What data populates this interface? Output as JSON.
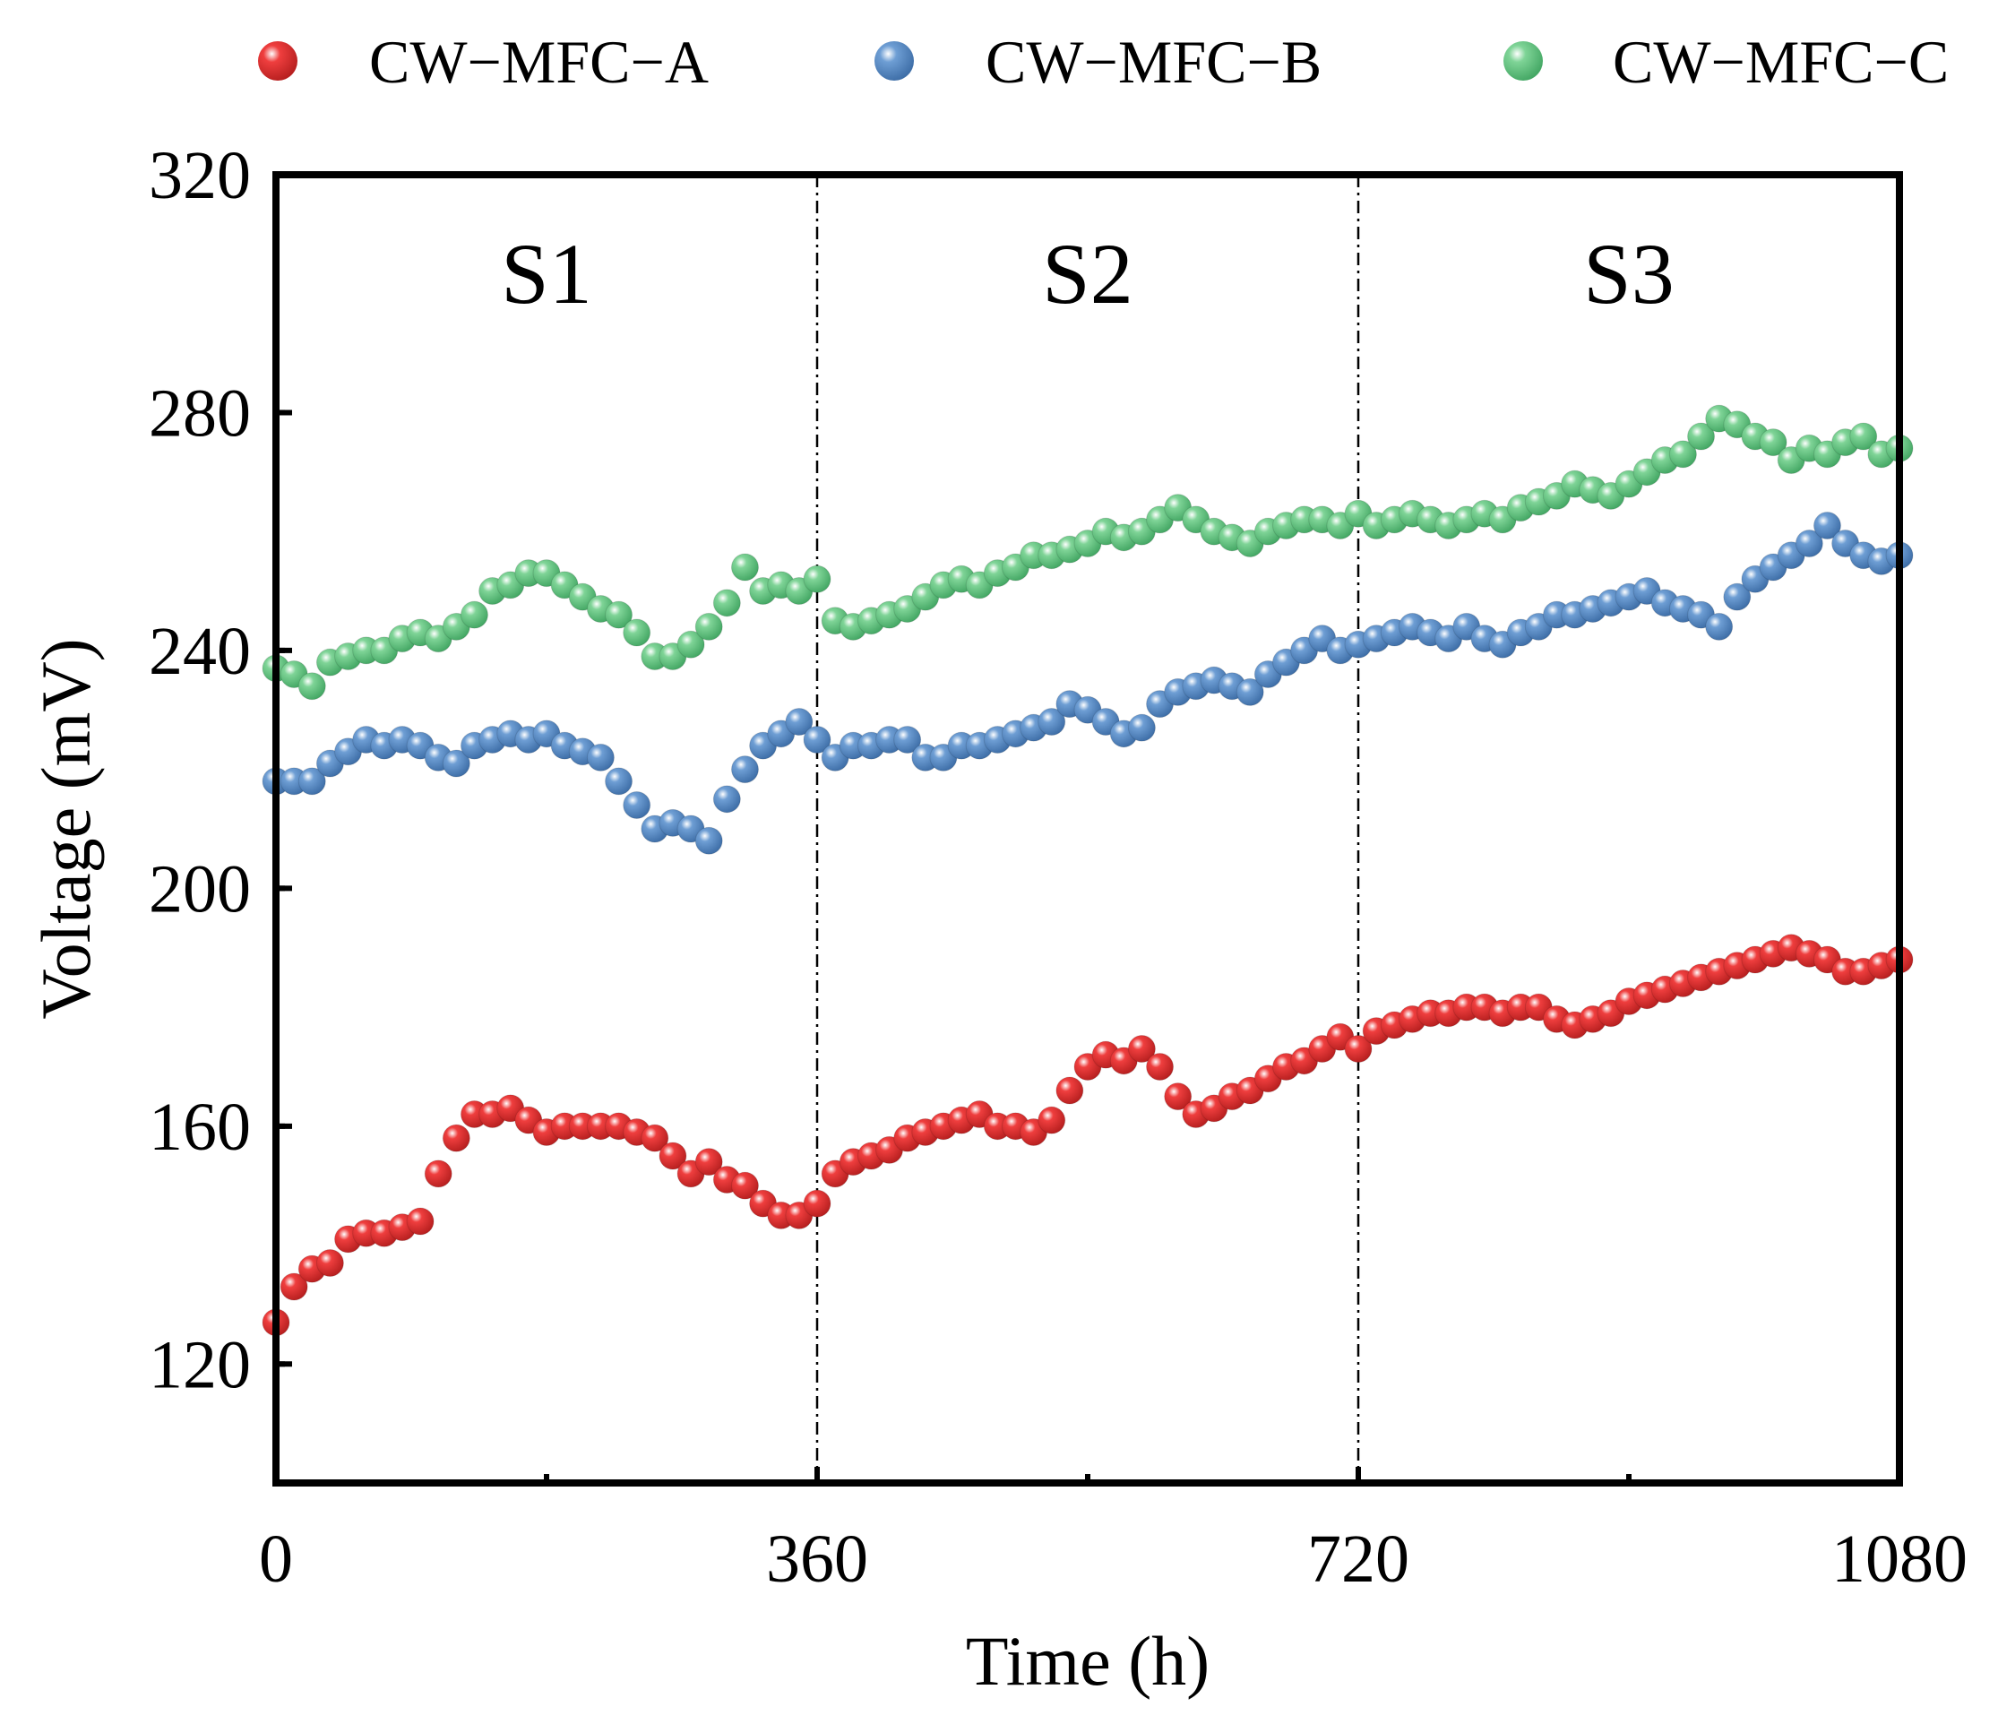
{
  "chart_data": {
    "type": "scatter",
    "xlabel": "Time (h)",
    "ylabel": "Voltage (mV)",
    "xlim": [
      0,
      1080
    ],
    "ylim": [
      100,
      320
    ],
    "xticks": [
      0,
      360,
      720,
      1080
    ],
    "yticks": [
      120,
      160,
      200,
      240,
      280,
      320
    ],
    "legend_position": "top",
    "grid": false,
    "stage_boundaries": [
      360,
      720
    ],
    "stage_labels": [
      {
        "text": "S1",
        "x": 180
      },
      {
        "text": "S2",
        "x": 540
      },
      {
        "text": "S3",
        "x": 900
      }
    ],
    "series": [
      {
        "name": "CW−MFC−A",
        "color": "#ef3e3e",
        "points": [
          [
            0,
            127
          ],
          [
            12,
            133
          ],
          [
            24,
            136
          ],
          [
            36,
            137
          ],
          [
            48,
            141
          ],
          [
            60,
            142
          ],
          [
            72,
            142
          ],
          [
            84,
            143
          ],
          [
            96,
            144
          ],
          [
            108,
            152
          ],
          [
            120,
            158
          ],
          [
            132,
            162
          ],
          [
            144,
            162
          ],
          [
            156,
            163
          ],
          [
            168,
            161
          ],
          [
            180,
            159
          ],
          [
            192,
            160
          ],
          [
            204,
            160
          ],
          [
            216,
            160
          ],
          [
            228,
            160
          ],
          [
            240,
            159
          ],
          [
            252,
            158
          ],
          [
            264,
            155
          ],
          [
            276,
            152
          ],
          [
            288,
            154
          ],
          [
            300,
            151
          ],
          [
            312,
            150
          ],
          [
            324,
            147
          ],
          [
            336,
            145
          ],
          [
            348,
            145
          ],
          [
            360,
            147
          ],
          [
            372,
            152
          ],
          [
            384,
            154
          ],
          [
            396,
            155
          ],
          [
            408,
            156
          ],
          [
            420,
            158
          ],
          [
            432,
            159
          ],
          [
            444,
            160
          ],
          [
            456,
            161
          ],
          [
            468,
            162
          ],
          [
            480,
            160
          ],
          [
            492,
            160
          ],
          [
            504,
            159
          ],
          [
            516,
            161
          ],
          [
            528,
            166
          ],
          [
            540,
            170
          ],
          [
            552,
            172
          ],
          [
            564,
            171
          ],
          [
            576,
            173
          ],
          [
            588,
            170
          ],
          [
            600,
            165
          ],
          [
            612,
            162
          ],
          [
            624,
            163
          ],
          [
            636,
            165
          ],
          [
            648,
            166
          ],
          [
            660,
            168
          ],
          [
            672,
            170
          ],
          [
            684,
            171
          ],
          [
            696,
            173
          ],
          [
            708,
            175
          ],
          [
            720,
            173
          ],
          [
            732,
            176
          ],
          [
            744,
            177
          ],
          [
            756,
            178
          ],
          [
            768,
            179
          ],
          [
            780,
            179
          ],
          [
            792,
            180
          ],
          [
            804,
            180
          ],
          [
            816,
            179
          ],
          [
            828,
            180
          ],
          [
            840,
            180
          ],
          [
            852,
            178
          ],
          [
            864,
            177
          ],
          [
            876,
            178
          ],
          [
            888,
            179
          ],
          [
            900,
            181
          ],
          [
            912,
            182
          ],
          [
            924,
            183
          ],
          [
            936,
            184
          ],
          [
            948,
            185
          ],
          [
            960,
            186
          ],
          [
            972,
            187
          ],
          [
            984,
            188
          ],
          [
            996,
            189
          ],
          [
            1008,
            190
          ],
          [
            1020,
            189
          ],
          [
            1032,
            188
          ],
          [
            1044,
            186
          ],
          [
            1056,
            186
          ],
          [
            1068,
            187
          ],
          [
            1080,
            188
          ]
        ]
      },
      {
        "name": "CW−MFC−B",
        "color": "#6e9ed4",
        "points": [
          [
            0,
            218
          ],
          [
            12,
            218
          ],
          [
            24,
            218
          ],
          [
            36,
            221
          ],
          [
            48,
            223
          ],
          [
            60,
            225
          ],
          [
            72,
            224
          ],
          [
            84,
            225
          ],
          [
            96,
            224
          ],
          [
            108,
            222
          ],
          [
            120,
            221
          ],
          [
            132,
            224
          ],
          [
            144,
            225
          ],
          [
            156,
            226
          ],
          [
            168,
            225
          ],
          [
            180,
            226
          ],
          [
            192,
            224
          ],
          [
            204,
            223
          ],
          [
            216,
            222
          ],
          [
            228,
            218
          ],
          [
            240,
            214
          ],
          [
            252,
            210
          ],
          [
            264,
            211
          ],
          [
            276,
            210
          ],
          [
            288,
            208
          ],
          [
            300,
            215
          ],
          [
            312,
            220
          ],
          [
            324,
            224
          ],
          [
            336,
            226
          ],
          [
            348,
            228
          ],
          [
            360,
            225
          ],
          [
            372,
            222
          ],
          [
            384,
            224
          ],
          [
            396,
            224
          ],
          [
            408,
            225
          ],
          [
            420,
            225
          ],
          [
            432,
            222
          ],
          [
            444,
            222
          ],
          [
            456,
            224
          ],
          [
            468,
            224
          ],
          [
            480,
            225
          ],
          [
            492,
            226
          ],
          [
            504,
            227
          ],
          [
            516,
            228
          ],
          [
            528,
            231
          ],
          [
            540,
            230
          ],
          [
            552,
            228
          ],
          [
            564,
            226
          ],
          [
            576,
            227
          ],
          [
            588,
            231
          ],
          [
            600,
            233
          ],
          [
            612,
            234
          ],
          [
            624,
            235
          ],
          [
            636,
            234
          ],
          [
            648,
            233
          ],
          [
            660,
            236
          ],
          [
            672,
            238
          ],
          [
            684,
            240
          ],
          [
            696,
            242
          ],
          [
            708,
            240
          ],
          [
            720,
            241
          ],
          [
            732,
            242
          ],
          [
            744,
            243
          ],
          [
            756,
            244
          ],
          [
            768,
            243
          ],
          [
            780,
            242
          ],
          [
            792,
            244
          ],
          [
            804,
            242
          ],
          [
            816,
            241
          ],
          [
            828,
            243
          ],
          [
            840,
            244
          ],
          [
            852,
            246
          ],
          [
            864,
            246
          ],
          [
            876,
            247
          ],
          [
            888,
            248
          ],
          [
            900,
            249
          ],
          [
            912,
            250
          ],
          [
            924,
            248
          ],
          [
            936,
            247
          ],
          [
            948,
            246
          ],
          [
            960,
            244
          ],
          [
            972,
            249
          ],
          [
            984,
            252
          ],
          [
            996,
            254
          ],
          [
            1008,
            256
          ],
          [
            1020,
            258
          ],
          [
            1032,
            261
          ],
          [
            1044,
            258
          ],
          [
            1056,
            256
          ],
          [
            1068,
            255
          ],
          [
            1080,
            256
          ]
        ]
      },
      {
        "name": "CW−MFC−C",
        "color": "#7fd497",
        "points": [
          [
            0,
            237
          ],
          [
            12,
            236
          ],
          [
            24,
            234
          ],
          [
            36,
            238
          ],
          [
            48,
            239
          ],
          [
            60,
            240
          ],
          [
            72,
            240
          ],
          [
            84,
            242
          ],
          [
            96,
            243
          ],
          [
            108,
            242
          ],
          [
            120,
            244
          ],
          [
            132,
            246
          ],
          [
            144,
            250
          ],
          [
            156,
            251
          ],
          [
            168,
            253
          ],
          [
            180,
            253
          ],
          [
            192,
            251
          ],
          [
            204,
            249
          ],
          [
            216,
            247
          ],
          [
            228,
            246
          ],
          [
            240,
            243
          ],
          [
            252,
            239
          ],
          [
            264,
            239
          ],
          [
            276,
            241
          ],
          [
            288,
            244
          ],
          [
            300,
            248
          ],
          [
            312,
            254
          ],
          [
            324,
            250
          ],
          [
            336,
            251
          ],
          [
            348,
            250
          ],
          [
            360,
            252
          ],
          [
            372,
            245
          ],
          [
            384,
            244
          ],
          [
            396,
            245
          ],
          [
            408,
            246
          ],
          [
            420,
            247
          ],
          [
            432,
            249
          ],
          [
            444,
            251
          ],
          [
            456,
            252
          ],
          [
            468,
            251
          ],
          [
            480,
            253
          ],
          [
            492,
            254
          ],
          [
            504,
            256
          ],
          [
            516,
            256
          ],
          [
            528,
            257
          ],
          [
            540,
            258
          ],
          [
            552,
            260
          ],
          [
            564,
            259
          ],
          [
            576,
            260
          ],
          [
            588,
            262
          ],
          [
            600,
            264
          ],
          [
            612,
            262
          ],
          [
            624,
            260
          ],
          [
            636,
            259
          ],
          [
            648,
            258
          ],
          [
            660,
            260
          ],
          [
            672,
            261
          ],
          [
            684,
            262
          ],
          [
            696,
            262
          ],
          [
            708,
            261
          ],
          [
            720,
            263
          ],
          [
            732,
            261
          ],
          [
            744,
            262
          ],
          [
            756,
            263
          ],
          [
            768,
            262
          ],
          [
            780,
            261
          ],
          [
            792,
            262
          ],
          [
            804,
            263
          ],
          [
            816,
            262
          ],
          [
            828,
            264
          ],
          [
            840,
            265
          ],
          [
            852,
            266
          ],
          [
            864,
            268
          ],
          [
            876,
            267
          ],
          [
            888,
            266
          ],
          [
            900,
            268
          ],
          [
            912,
            270
          ],
          [
            924,
            272
          ],
          [
            936,
            273
          ],
          [
            948,
            276
          ],
          [
            960,
            279
          ],
          [
            972,
            278
          ],
          [
            984,
            276
          ],
          [
            996,
            275
          ],
          [
            1008,
            272
          ],
          [
            1020,
            274
          ],
          [
            1032,
            273
          ],
          [
            1044,
            275
          ],
          [
            1056,
            276
          ],
          [
            1068,
            273
          ],
          [
            1080,
            274
          ]
        ]
      }
    ]
  }
}
